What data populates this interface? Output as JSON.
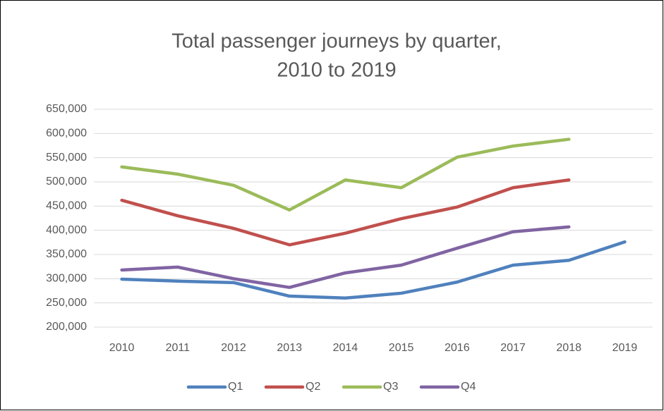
{
  "chart_data": {
    "type": "line",
    "title": [
      "Total passenger journeys by quarter,",
      "2010 to 2019"
    ],
    "categories": [
      "2010",
      "2011",
      "2012",
      "2013",
      "2014",
      "2015",
      "2016",
      "2017",
      "2018",
      "2019"
    ],
    "series": [
      {
        "name": "Q1",
        "color": "#4f81bd",
        "values": [
          299000,
          295000,
          292000,
          264000,
          260000,
          270000,
          293000,
          328000,
          338000,
          376000
        ]
      },
      {
        "name": "Q2",
        "color": "#c0504d",
        "values": [
          462000,
          430000,
          404000,
          370000,
          394000,
          424000,
          448000,
          488000,
          504000,
          null
        ]
      },
      {
        "name": "Q3",
        "color": "#9bbb59",
        "values": [
          531000,
          516000,
          493000,
          442000,
          504000,
          488000,
          551000,
          574000,
          588000,
          null
        ]
      },
      {
        "name": "Q4",
        "color": "#8064a2",
        "values": [
          318000,
          324000,
          300000,
          282000,
          312000,
          328000,
          363000,
          397000,
          407000,
          null
        ]
      }
    ],
    "ylim": [
      200000,
      650000
    ],
    "yticks": [
      {
        "value": 200000,
        "label": "200,000"
      },
      {
        "value": 250000,
        "label": "250,000"
      },
      {
        "value": 300000,
        "label": "300,000"
      },
      {
        "value": 350000,
        "label": "350,000"
      },
      {
        "value": 400000,
        "label": "400,000"
      },
      {
        "value": 450000,
        "label": "450,000"
      },
      {
        "value": 500000,
        "label": "500,000"
      },
      {
        "value": 550000,
        "label": "550,000"
      },
      {
        "value": 600000,
        "label": "600,000"
      },
      {
        "value": 650000,
        "label": "650,000"
      }
    ],
    "grid": true,
    "legend": "bottom"
  }
}
